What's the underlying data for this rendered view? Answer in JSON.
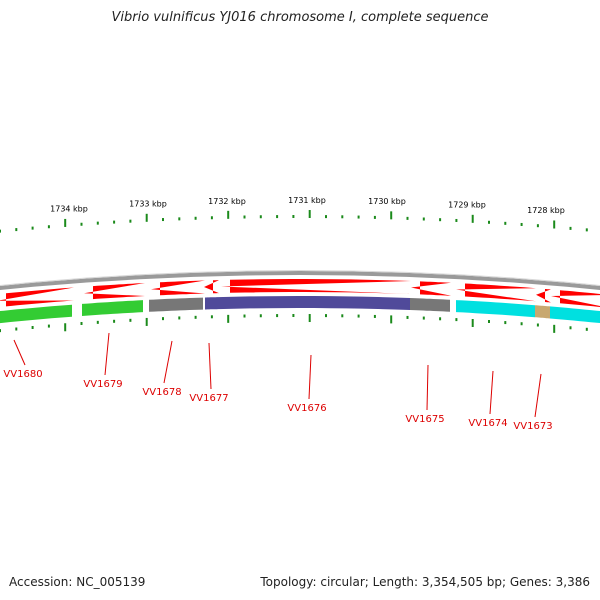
{
  "title": "Vibrio vulnificus YJ016 chromosome I, complete sequence",
  "footer": {
    "accession": "Accession: NC_005139",
    "summary": "Topology: circular; Length: 3,354,505 bp; Genes: 3,386"
  },
  "colors": {
    "forward_strand": "#ff0000",
    "backbone": "#9a9a9a",
    "tick": "#1b8a1b",
    "label": "#dd0000",
    "green_gene": "#33cc33",
    "gray_gene": "#777777",
    "purple_gene": "#504a9a",
    "cyan_gene": "#00e0e0",
    "tan_gene": "#c8a870"
  },
  "scale_labels": [
    "1734 kbp",
    "1733 kbp",
    "1732 kbp",
    "1731 kbp",
    "1730 kbp",
    "1729 kbp",
    "1728 kbp"
  ],
  "genes": [
    {
      "id": "VV1680",
      "color": "green"
    },
    {
      "id": "VV1679",
      "color": "green"
    },
    {
      "id": "VV1678",
      "color": "gray"
    },
    {
      "id": "VV1677",
      "color": "purple"
    },
    {
      "id": "VV1676",
      "color": "purple"
    },
    {
      "id": "VV1675",
      "color": "gray"
    },
    {
      "id": "VV1674",
      "color": "cyan"
    },
    {
      "id": "VV1673",
      "color": "tan"
    }
  ]
}
